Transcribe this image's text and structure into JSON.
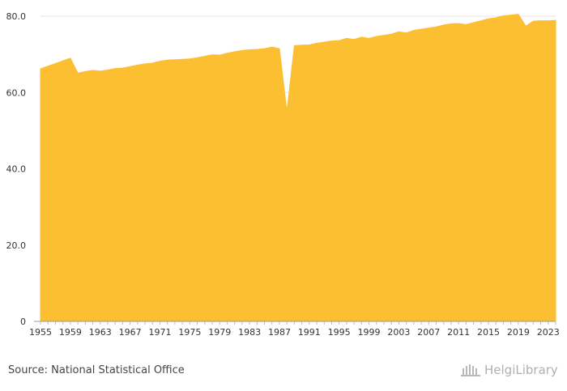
{
  "chart_data": {
    "type": "area",
    "title": "",
    "xlabel": "",
    "ylabel": "",
    "xlim": [
      1955,
      2024
    ],
    "ylim": [
      0,
      80
    ],
    "y_ticks": [
      "0",
      "20.0",
      "40.0",
      "60.0",
      "80.0"
    ],
    "x_ticks": [
      "1955",
      "1959",
      "1963",
      "1967",
      "1971",
      "1975",
      "1979",
      "1983",
      "1987",
      "1991",
      "1995",
      "1999",
      "2003",
      "2007",
      "2011",
      "2015",
      "2019",
      "2023"
    ],
    "grid": "horizontal",
    "color": "#fbbf31",
    "series": [
      {
        "x": [
          1955,
          1956,
          1957,
          1958,
          1959,
          1960,
          1961,
          1962,
          1963,
          1964,
          1965,
          1966,
          1967,
          1968,
          1969,
          1970,
          1971,
          1972,
          1973,
          1974,
          1975,
          1976,
          1977,
          1978,
          1979,
          1980,
          1981,
          1982,
          1983,
          1984,
          1985,
          1986,
          1987,
          1988,
          1989,
          1990,
          1991,
          1992,
          1993,
          1994,
          1995,
          1996,
          1997,
          1998,
          1999,
          2000,
          2001,
          2002,
          2003,
          2004,
          2005,
          2006,
          2007,
          2008,
          2009,
          2010,
          2011,
          2012,
          2013,
          2014,
          2015,
          2016,
          2017,
          2018,
          2019,
          2020,
          2021,
          2022,
          2023,
          2024
        ],
        "values": [
          66.2,
          66.9,
          67.6,
          68.3,
          69.0,
          65.1,
          65.5,
          65.8,
          65.6,
          65.9,
          66.3,
          66.4,
          66.8,
          67.2,
          67.5,
          67.7,
          68.2,
          68.5,
          68.6,
          68.7,
          68.8,
          69.1,
          69.5,
          69.9,
          69.8,
          70.3,
          70.7,
          71.0,
          71.2,
          71.3,
          71.5,
          71.9,
          71.5,
          55.0,
          72.3,
          72.4,
          72.5,
          72.9,
          73.2,
          73.5,
          73.6,
          74.2,
          73.9,
          74.5,
          74.2,
          74.7,
          75.0,
          75.3,
          75.9,
          75.6,
          76.3,
          76.6,
          76.9,
          77.2,
          77.7,
          78.0,
          78.1,
          77.8,
          78.3,
          78.8,
          79.3,
          79.6,
          80.1,
          80.3,
          80.5,
          77.4,
          78.7,
          78.8,
          78.8,
          78.9
        ]
      }
    ]
  },
  "source": {
    "text": "Source: National Statistical Office"
  },
  "logo": {
    "text": "HelgiLibrary"
  }
}
